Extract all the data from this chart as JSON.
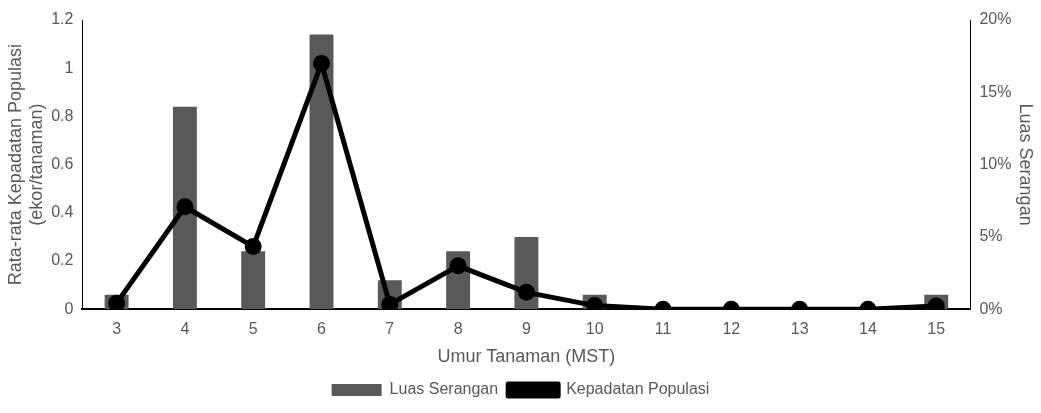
{
  "chart_data": {
    "type": "bar",
    "xlabel": "Umur Tanaman (MST)",
    "ylabel": "Rata-rata Kepadatan Populasi\n(ekor/tanaman)",
    "y2label": "Luas Serangan",
    "categories": [
      "3",
      "4",
      "5",
      "6",
      "7",
      "8",
      "9",
      "10",
      "11",
      "12",
      "13",
      "14",
      "15"
    ],
    "series": [
      {
        "name": "Luas Serangan",
        "axis": "y2",
        "color": "#595959",
        "values": [
          1,
          14,
          4,
          19,
          2,
          4,
          5,
          1,
          0,
          0,
          0,
          0,
          1
        ]
      },
      {
        "name": "Kepadatan Populasi",
        "type": "line",
        "color": "#000000",
        "marker": "circle",
        "values": [
          0.025,
          0.425,
          0.26,
          1.02,
          0.02,
          0.18,
          0.07,
          0.015,
          0,
          0,
          0,
          0,
          0.013
        ]
      }
    ],
    "ylim": [
      0,
      1.2
    ],
    "yticks": [
      0,
      0.2,
      0.4,
      0.6,
      0.8,
      1,
      1.2
    ],
    "y2lim": [
      0,
      20
    ],
    "y2ticks": [
      {
        "value": 0,
        "label": "0%"
      },
      {
        "value": 5,
        "label": "5%"
      },
      {
        "value": 10,
        "label": "10%"
      },
      {
        "value": 15,
        "label": "15%"
      },
      {
        "value": 20,
        "label": "20%"
      }
    ],
    "grid": false,
    "legend": "bottom"
  }
}
